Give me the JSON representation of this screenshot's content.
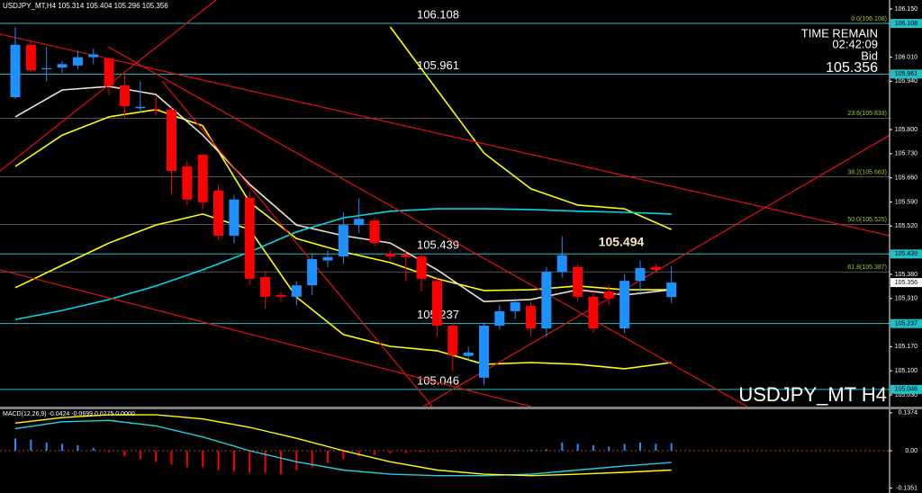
{
  "chart_data": [
    {
      "type": "candlestick",
      "title": "USDJPY_MT,H4  105.314 105.404 105.296 105.356",
      "symbol_label": "USDJPY_MT H4",
      "info": {
        "time_remain_label": "TIME REMAIN",
        "time_remain": "02:42:09",
        "bid_label": "Bid",
        "bid": 105.356
      },
      "annotations": [
        "105.494"
      ],
      "up_color": "#1e90ff",
      "down_color": "#ff0000",
      "open": [
        105.894,
        106.046,
        105.975,
        105.98,
        105.986,
        106.01,
        106.006,
        105.928,
        105.862,
        105.86,
        105.858,
        105.693,
        105.727,
        105.623,
        105.492,
        105.602,
        105.372,
        105.32,
        105.315,
        105.348,
        105.42,
        105.432,
        105.523,
        105.536,
        105.44,
        105.437,
        105.432,
        105.361,
        105.231,
        105.143,
        105.08,
        105.231,
        105.273,
        105.288,
        105.223,
        105.387,
        105.401,
        105.315,
        105.33,
        105.223,
        105.361,
        105.401,
        105.314
      ],
      "high": [
        106.098,
        106.059,
        106.04,
        106.0,
        106.03,
        106.035,
        106.01,
        105.96,
        105.94,
        105.9,
        105.87,
        105.71,
        105.73,
        105.64,
        105.61,
        105.62,
        105.39,
        105.33,
        105.36,
        105.44,
        105.45,
        105.56,
        105.6,
        105.545,
        105.45,
        105.45,
        105.44,
        105.37,
        105.24,
        105.17,
        105.24,
        105.29,
        105.31,
        105.3,
        105.4,
        105.49,
        105.41,
        105.33,
        105.35,
        105.38,
        105.42,
        105.41,
        105.404
      ],
      "low": [
        105.889,
        105.967,
        105.94,
        105.965,
        105.975,
        105.99,
        105.9,
        105.83,
        105.85,
        105.84,
        105.61,
        105.58,
        105.57,
        105.48,
        105.47,
        105.35,
        105.28,
        105.3,
        105.29,
        105.32,
        105.4,
        105.41,
        105.5,
        105.46,
        105.42,
        105.36,
        105.33,
        105.2,
        105.1,
        105.13,
        105.06,
        105.22,
        105.25,
        105.2,
        105.2,
        105.37,
        105.3,
        105.21,
        105.29,
        105.21,
        105.32,
        105.39,
        105.296
      ],
      "close": [
        106.046,
        105.972,
        105.978,
        105.99,
        106.01,
        106.018,
        105.928,
        105.868,
        105.866,
        105.858,
        105.68,
        105.597,
        105.589,
        105.492,
        105.597,
        105.367,
        105.315,
        105.315,
        105.348,
        105.424,
        105.43,
        105.523,
        105.541,
        105.471,
        105.432,
        105.43,
        105.367,
        105.231,
        105.145,
        105.153,
        105.231,
        105.273,
        105.299,
        105.223,
        105.387,
        105.435,
        105.315,
        105.223,
        105.31,
        105.361,
        105.398,
        105.393,
        105.356
      ],
      "levels": [
        106.108,
        105.961,
        105.439,
        105.237,
        105.046
      ],
      "level_color": "#20c0c8",
      "fibo": [
        {
          "value": 106.108,
          "label": "0.0(106.108)"
        },
        {
          "value": 105.833,
          "label": "23.6(105.833)"
        },
        {
          "value": 105.663,
          "label": "38.2(105.663)"
        },
        {
          "value": 105.525,
          "label": "50.0(105.525)"
        },
        {
          "value": 105.387,
          "label": "61.8(105.387)"
        }
      ],
      "fibo_color": "#9acd32",
      "overlays": [
        {
          "color": "#ffff00",
          "x": [
            0,
            3,
            6,
            9,
            12,
            15,
            18,
            21,
            24,
            27,
            30,
            33,
            36,
            39,
            42
          ],
          "values": [
            105.693,
            105.784,
            105.837,
            105.858,
            105.811,
            105.589,
            105.484,
            105.445,
            105.414,
            105.367,
            105.333,
            105.335,
            105.346,
            105.335,
            105.335
          ]
        },
        {
          "color": "#ffff00",
          "x": [
            0,
            3,
            6,
            9,
            12,
            15,
            18,
            21,
            24,
            27,
            30,
            33,
            36,
            39,
            42
          ],
          "values": [
            null,
            null,
            null,
            null,
            null,
            null,
            null,
            null,
            106.098,
            105.915,
            105.732,
            105.628,
            105.581,
            105.57,
            105.51
          ]
        },
        {
          "color": "#ffff00",
          "x": [
            0,
            3,
            6,
            9,
            12,
            15,
            18,
            21,
            24,
            27,
            30,
            33,
            36,
            39,
            42
          ],
          "values": [
            105.341,
            105.406,
            105.471,
            105.523,
            105.555,
            105.51,
            105.314,
            105.205,
            105.171,
            105.158,
            105.119,
            105.124,
            105.119,
            105.106,
            105.124
          ]
        },
        {
          "color": "#f0e0d0",
          "x": [
            0,
            3,
            6,
            9,
            12,
            15,
            18,
            21,
            24,
            27,
            30,
            33,
            36,
            39,
            42
          ],
          "values": [
            105.837,
            105.915,
            105.925,
            105.902,
            105.784,
            105.641,
            105.523,
            105.492,
            105.471,
            105.393,
            105.301,
            105.307,
            105.335,
            105.32,
            105.335
          ]
        },
        {
          "color": "#00d8e8",
          "x": [
            0,
            3,
            6,
            9,
            12,
            15,
            18,
            21,
            24,
            27,
            30,
            33,
            36,
            39,
            42
          ],
          "values": [
            105.249,
            105.275,
            105.307,
            105.346,
            105.393,
            105.445,
            105.503,
            105.544,
            105.563,
            105.57,
            105.57,
            105.568,
            105.563,
            105.56,
            105.555
          ]
        }
      ],
      "trend_color": "#e01010",
      "trendlines": [
        {
          "x": [
            -0.98,
            55.97
          ],
          "values": [
            106.077,
            105.492
          ]
        },
        {
          "x": [
            -0.98,
            12.85
          ],
          "values": [
            105.68,
            106.176
          ]
        },
        {
          "x": [
            5.94,
            46.86
          ],
          "values": [
            106.04,
            104.996
          ]
        },
        {
          "x": [
            -0.98,
            33.03
          ],
          "values": [
            105.393,
            104.996
          ]
        },
        {
          "x": [
            26.1,
            55.97
          ],
          "values": [
            104.996,
            105.784
          ]
        },
        {
          "x": [
            9.39,
            26.7
          ],
          "values": [
            105.941,
            104.996
          ]
        }
      ],
      "ylim": [
        104.996,
        106.176
      ],
      "yticks": [
        {
          "value": 106.15,
          "label": "106.150"
        },
        {
          "value": 106.01,
          "label": "106.010"
        },
        {
          "value": 105.94,
          "label": "105.940"
        },
        {
          "value": 105.8,
          "label": "105.800"
        },
        {
          "value": 105.73,
          "label": "105.730"
        },
        {
          "value": 105.66,
          "label": "105.660"
        },
        {
          "value": 105.59,
          "label": "105.590"
        },
        {
          "value": 105.52,
          "label": "105.520"
        },
        {
          "value": 105.38,
          "label": "105.380"
        },
        {
          "value": 105.31,
          "label": "105.310"
        },
        {
          "value": 105.17,
          "label": "105.170"
        },
        {
          "value": 105.1,
          "label": "105.100"
        },
        {
          "value": 105.03,
          "label": "105.030"
        }
      ]
    },
    {
      "type": "macd",
      "title": "MACD(12,26,9) -0.0424 -0.0699 0.0275 0.0000",
      "values": [
        0.045,
        0.04,
        0.03,
        0.025,
        0.02,
        0.01,
        -0.005,
        -0.02,
        -0.03,
        -0.04,
        -0.05,
        -0.06,
        -0.06,
        -0.07,
        -0.075,
        -0.08,
        -0.08,
        -0.085,
        -0.07,
        -0.06,
        -0.045,
        -0.03,
        -0.02,
        -0.015,
        -0.01,
        -0.008,
        -0.005,
        -0.004,
        -0.003,
        -0.002,
        -0.001,
        0.001,
        0.002,
        0.003,
        0.005,
        0.03,
        0.025,
        0.02,
        0.015,
        0.025,
        0.03,
        0.025,
        0.0275
      ],
      "up_color": "#1e90ff",
      "down_color": "#ff0000",
      "series": [
        {
          "color": "#20d0e0",
          "x": [
            0,
            3,
            6,
            9,
            12,
            15,
            18,
            21,
            24,
            27,
            30,
            33,
            36,
            39,
            42
          ],
          "values": [
            0.08,
            0.105,
            0.11,
            0.09,
            0.05,
            0.0,
            -0.04,
            -0.07,
            -0.085,
            -0.09,
            -0.09,
            -0.085,
            -0.07,
            -0.055,
            -0.0424
          ]
        },
        {
          "color": "#ffff00",
          "x": [
            0,
            3,
            6,
            9,
            12,
            15,
            18,
            21,
            24,
            27,
            30,
            33,
            36,
            39,
            42
          ],
          "values": [
            0.1,
            0.12,
            0.13,
            0.13,
            0.115,
            0.085,
            0.045,
            0.0,
            -0.04,
            -0.07,
            -0.085,
            -0.09,
            -0.085,
            -0.078,
            -0.0699
          ]
        }
      ],
      "ylim": [
        -0.153,
        0.15
      ],
      "yticks": [
        0.1374,
        {
          "value": 0,
          "label": "0.00"
        },
        -0.1351
      ]
    }
  ]
}
